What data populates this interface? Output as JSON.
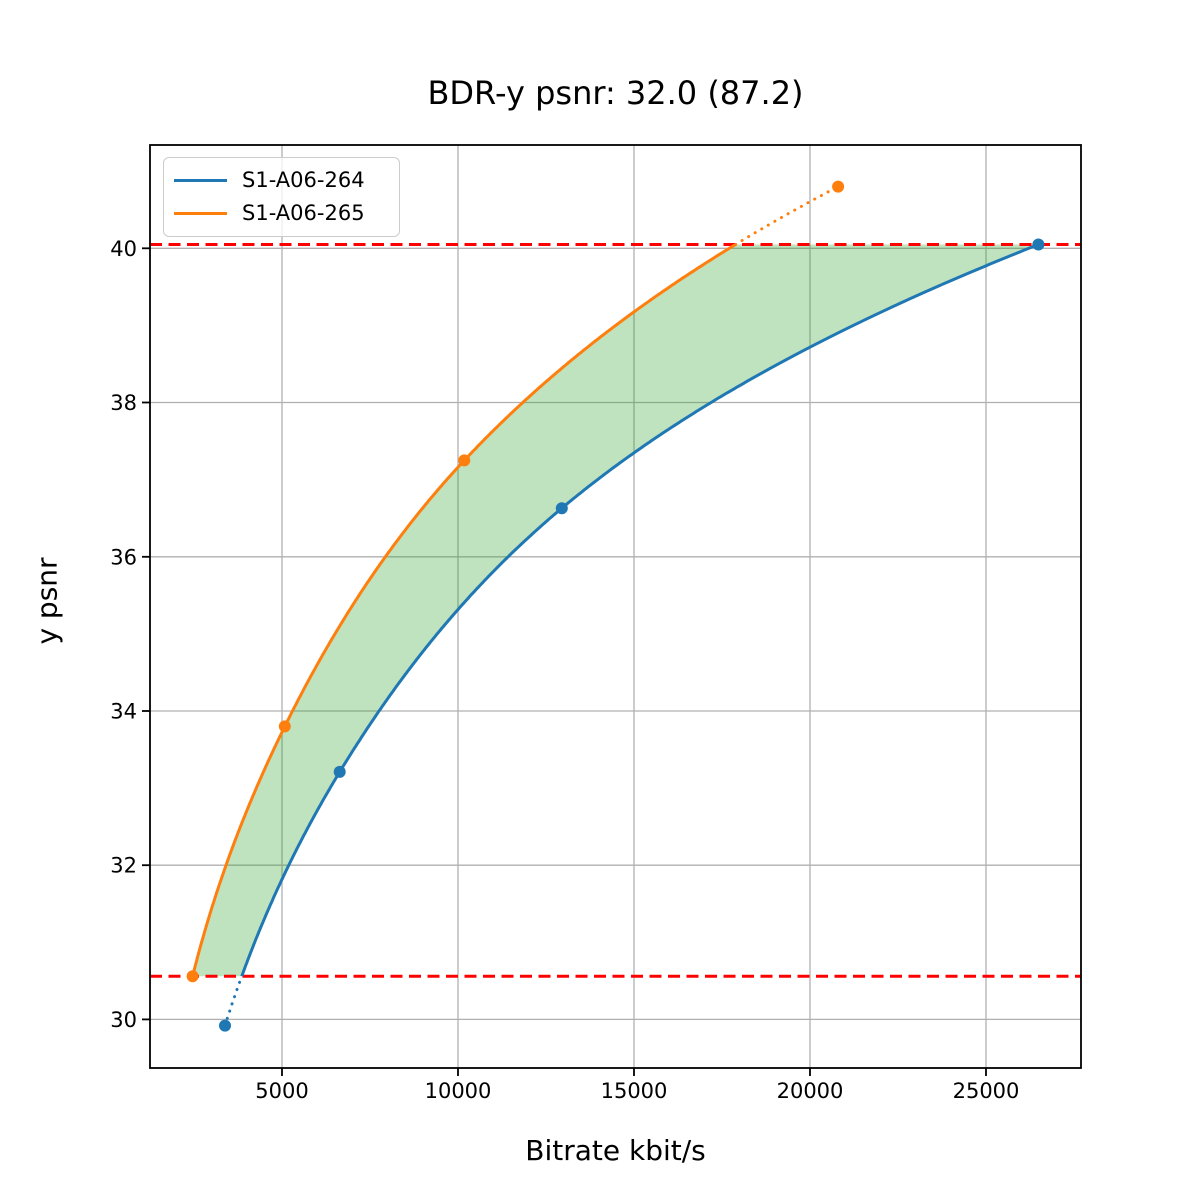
{
  "chart_data": {
    "type": "line",
    "title": "BDR-y psnr: 32.0 (87.2)",
    "xlabel": "Bitrate kbit/s",
    "ylabel": "y psnr",
    "xlim": [
      1250,
      27700
    ],
    "ylim": [
      29.37,
      41.34
    ],
    "xticks": [
      5000,
      10000,
      15000,
      20000,
      25000
    ],
    "yticks": [
      30,
      32,
      34,
      36,
      38,
      40
    ],
    "grid": true,
    "legend_position": "upper left",
    "series": [
      {
        "name": "S1-A06-264",
        "color": "#1f77b4",
        "x": [
          3380,
          6640,
          12950,
          26490
        ],
        "y": [
          29.92,
          33.21,
          36.63,
          40.05
        ]
      },
      {
        "name": "S1-A06-265",
        "color": "#ff7f0e",
        "x": [
          2460,
          5080,
          10180,
          20800
        ],
        "y": [
          30.56,
          33.8,
          37.25,
          40.8
        ]
      }
    ],
    "hlines": {
      "values": [
        30.56,
        40.05
      ],
      "color": "#ff0000",
      "style": "dashed"
    },
    "fill_between": {
      "color": "#2ca02c",
      "opacity": 0.3
    }
  }
}
